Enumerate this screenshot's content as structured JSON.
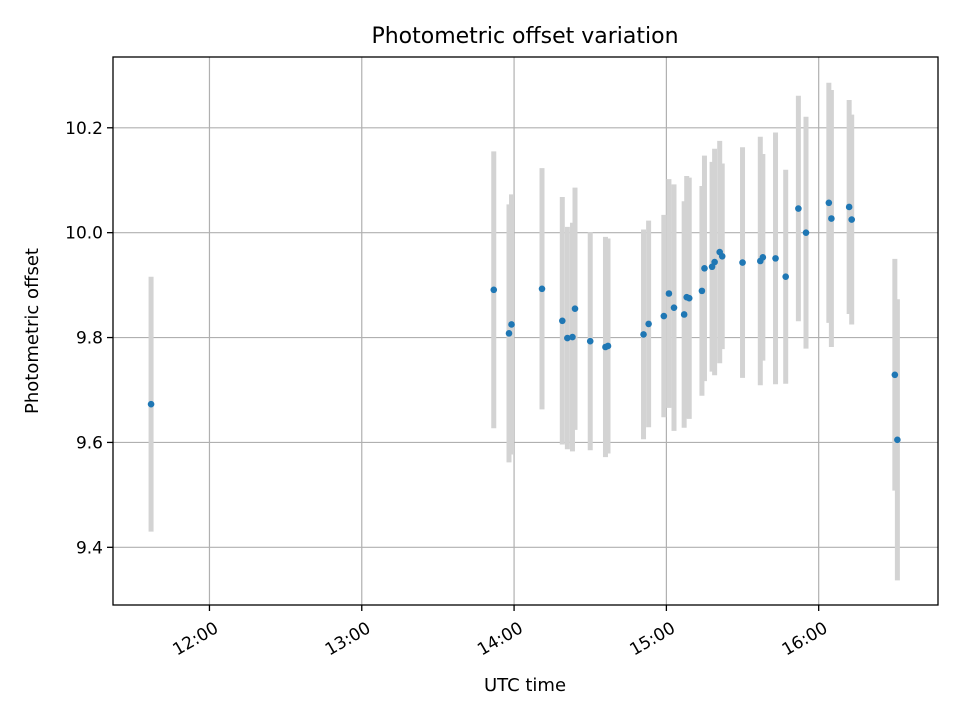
{
  "chart_data": {
    "type": "scatter",
    "title": "Photometric offset variation",
    "xlabel": "UTC time",
    "ylabel": "Photometric offset",
    "x_axis_type": "time",
    "xlim": [
      "11:22",
      "16:47"
    ],
    "ylim": [
      9.29,
      10.335
    ],
    "xticks": [
      "12:00",
      "13:00",
      "14:00",
      "15:00",
      "16:00"
    ],
    "yticks": [
      9.4,
      9.6,
      9.8,
      10.0,
      10.2
    ],
    "ytick_labels": [
      "9.4",
      "9.6",
      "9.8",
      "10.0",
      "10.2"
    ],
    "grid": true,
    "point_color": "#1f77b4",
    "errorbar_color": "#d3d3d3",
    "points": [
      {
        "x": "11:37",
        "y": 9.673,
        "err": 0.243
      },
      {
        "x": "13:52",
        "y": 9.891,
        "err": 0.264
      },
      {
        "x": "13:58",
        "y": 9.808,
        "err": 0.246
      },
      {
        "x": "13:59",
        "y": 9.825,
        "err": 0.248
      },
      {
        "x": "14:11",
        "y": 9.893,
        "err": 0.23
      },
      {
        "x": "14:19",
        "y": 9.832,
        "err": 0.236
      },
      {
        "x": "14:21",
        "y": 9.799,
        "err": 0.212
      },
      {
        "x": "14:23",
        "y": 9.801,
        "err": 0.218
      },
      {
        "x": "14:24",
        "y": 9.855,
        "err": 0.231
      },
      {
        "x": "14:30",
        "y": 9.793,
        "err": 0.208
      },
      {
        "x": "14:36",
        "y": 9.782,
        "err": 0.21
      },
      {
        "x": "14:37",
        "y": 9.784,
        "err": 0.205
      },
      {
        "x": "14:51",
        "y": 9.806,
        "err": 0.2
      },
      {
        "x": "14:53",
        "y": 9.826,
        "err": 0.197
      },
      {
        "x": "14:59",
        "y": 9.841,
        "err": 0.193
      },
      {
        "x": "15:01",
        "y": 9.884,
        "err": 0.218
      },
      {
        "x": "15:03",
        "y": 9.857,
        "err": 0.235
      },
      {
        "x": "15:07",
        "y": 9.844,
        "err": 0.216
      },
      {
        "x": "15:08",
        "y": 9.877,
        "err": 0.231
      },
      {
        "x": "15:09",
        "y": 9.875,
        "err": 0.23
      },
      {
        "x": "15:14",
        "y": 9.889,
        "err": 0.2
      },
      {
        "x": "15:15",
        "y": 9.932,
        "err": 0.215
      },
      {
        "x": "15:18",
        "y": 9.935,
        "err": 0.2
      },
      {
        "x": "15:19",
        "y": 9.944,
        "err": 0.216
      },
      {
        "x": "15:21",
        "y": 9.963,
        "err": 0.212
      },
      {
        "x": "15:22",
        "y": 9.955,
        "err": 0.177
      },
      {
        "x": "15:30",
        "y": 9.943,
        "err": 0.22
      },
      {
        "x": "15:37",
        "y": 9.946,
        "err": 0.237
      },
      {
        "x": "15:38",
        "y": 9.953,
        "err": 0.197
      },
      {
        "x": "15:43",
        "y": 9.951,
        "err": 0.24
      },
      {
        "x": "15:47",
        "y": 9.916,
        "err": 0.204
      },
      {
        "x": "15:52",
        "y": 10.046,
        "err": 0.215
      },
      {
        "x": "15:55",
        "y": 10.0,
        "err": 0.221
      },
      {
        "x": "16:04",
        "y": 10.057,
        "err": 0.229
      },
      {
        "x": "16:05",
        "y": 10.027,
        "err": 0.245
      },
      {
        "x": "16:12",
        "y": 10.049,
        "err": 0.204
      },
      {
        "x": "16:13",
        "y": 10.025,
        "err": 0.2
      },
      {
        "x": "16:30",
        "y": 9.729,
        "err": 0.221
      },
      {
        "x": "16:31",
        "y": 9.605,
        "err": 0.268
      }
    ]
  }
}
